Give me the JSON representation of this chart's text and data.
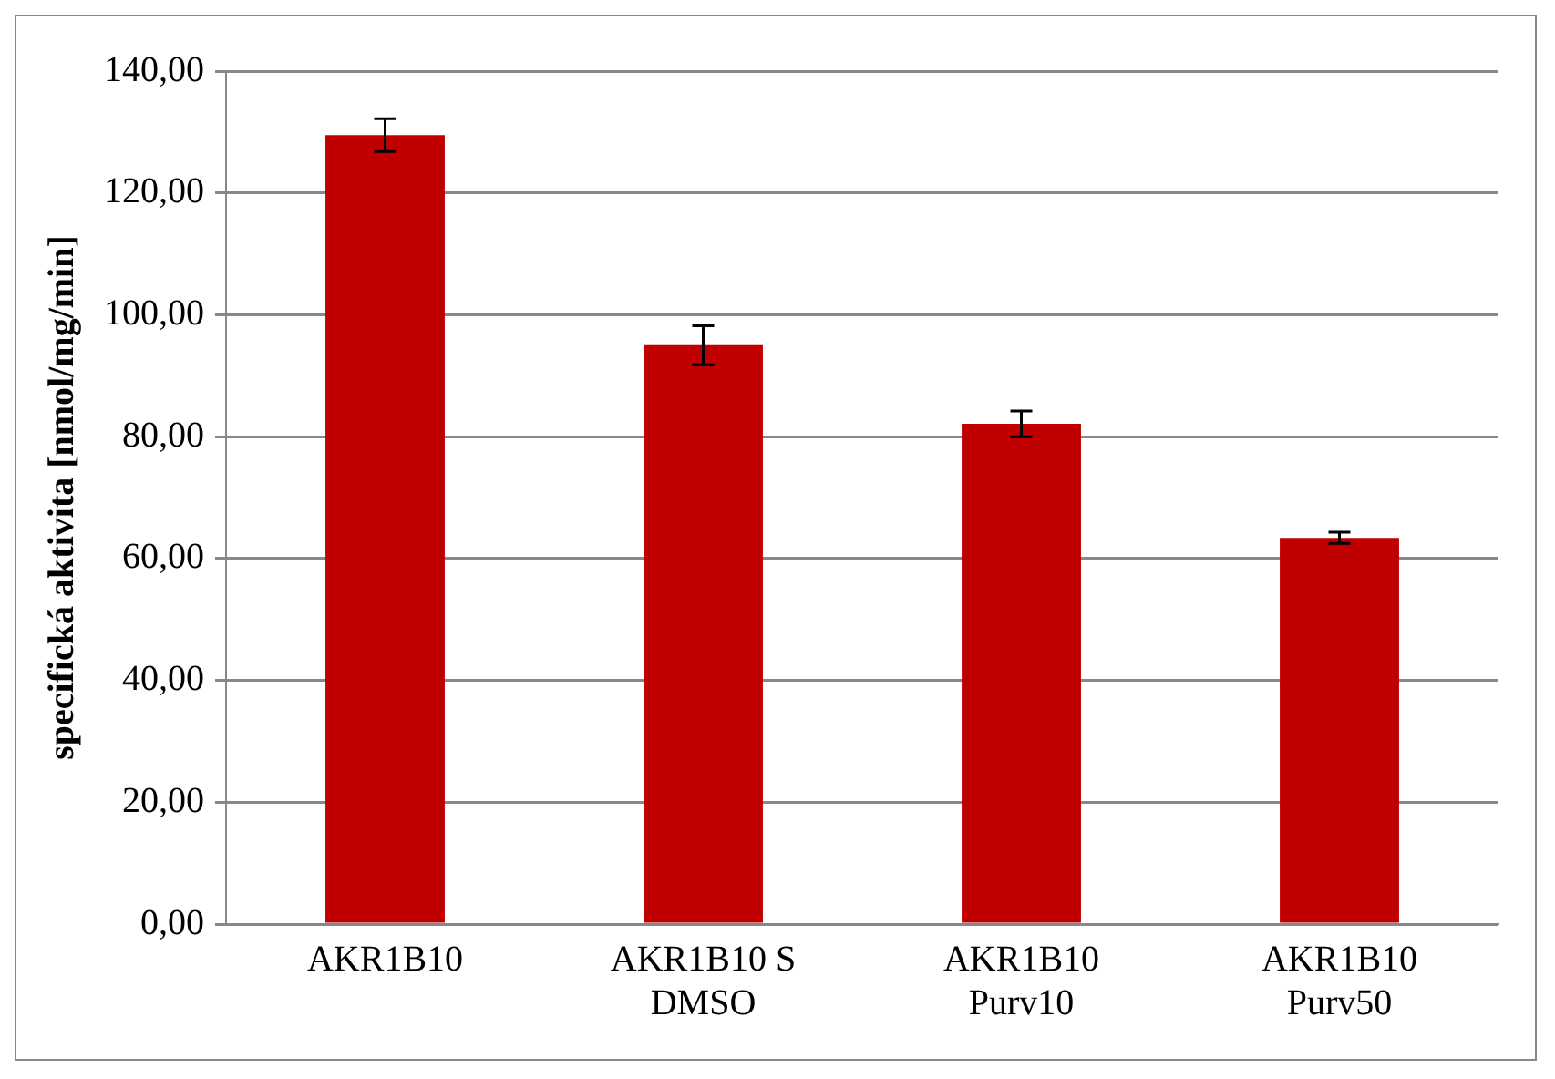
{
  "chart_data": {
    "type": "bar",
    "ylabel": "specifická aktivita [nmol/mg/min]",
    "categories": [
      "AKR1B10",
      "AKR1B10 S DMSO",
      "AKR1B10 Purv10",
      "AKR1B10 Purv50"
    ],
    "values": [
      129.5,
      95.0,
      82.1,
      63.4
    ],
    "errors": [
      2.7,
      3.2,
      2.1,
      0.9
    ],
    "color": "#c00000",
    "ylim": [
      0,
      140
    ],
    "yticks": [
      {
        "value": 0,
        "label": "0,00"
      },
      {
        "value": 20,
        "label": "20,00"
      },
      {
        "value": 40,
        "label": "40,00"
      },
      {
        "value": 60,
        "label": "60,00"
      },
      {
        "value": 80,
        "label": "80,00"
      },
      {
        "value": 100,
        "label": "100,00"
      },
      {
        "value": 120,
        "label": "120,00"
      },
      {
        "value": 140,
        "label": "140,00"
      }
    ],
    "grid": "y"
  }
}
